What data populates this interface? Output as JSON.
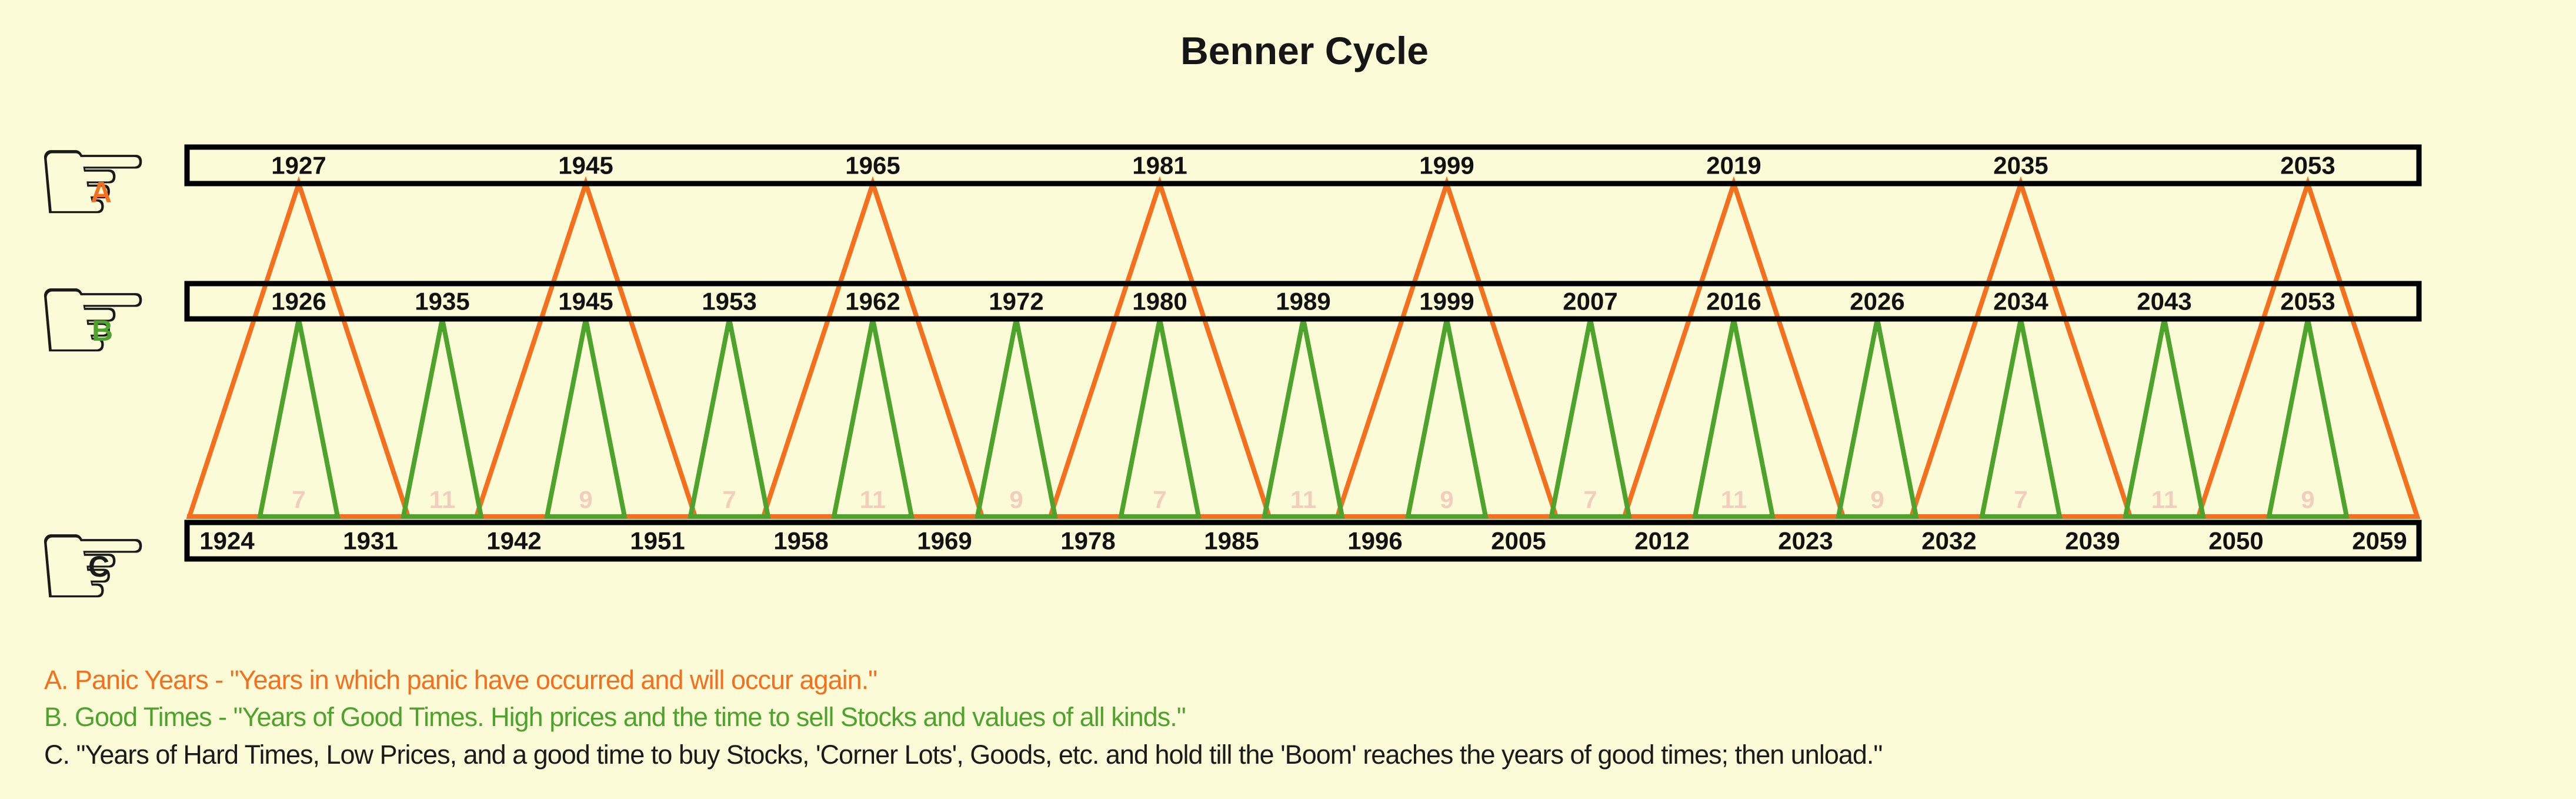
{
  "title": "Benner Cycle",
  "icons": {
    "pointing_hand": "☞"
  },
  "colors": {
    "background": "#FBFBD8",
    "panic_orange": "#F4701E",
    "good_green": "#4DA32B",
    "hard_black": "#1A1A1A",
    "interval_pale": "#F1CFBC",
    "box_border": "#000000"
  },
  "rows": [
    {
      "id": "A",
      "label": "A",
      "label_color": "#F4701E",
      "name": "Panic Years"
    },
    {
      "id": "B",
      "label": "B",
      "label_color": "#4DA32B",
      "name": "Good Times"
    },
    {
      "id": "C",
      "label": "C",
      "label_color": "#1A1A1A",
      "name": "Hard Times"
    }
  ],
  "legend": [
    {
      "text": "A. Panic Years - \"Years in which panic have occurred and will occur again.\"",
      "color": "#F4701E"
    },
    {
      "text": "B. Good Times - \"Years of Good Times. High prices and the time to sell Stocks and values of all kinds.\"",
      "color": "#4DA32B"
    },
    {
      "text": "C. \"Years of Hard Times, Low Prices, and a good time to buy Stocks, 'Corner Lots', Goods, etc. and hold till the 'Boom' reaches the years of good times; then unload.\"",
      "color": "#1A1A1A"
    }
  ],
  "chart_data": {
    "type": "line",
    "title": "Benner Cycle",
    "x_range": [
      1924,
      2059
    ],
    "grid": false,
    "legend_position": "bottom-left",
    "series": [
      {
        "name": "A. Panic Years",
        "role": "upper-peaks",
        "color": "#F4701E",
        "years": [
          1927,
          1945,
          1965,
          1981,
          1999,
          2019,
          2035,
          2053
        ]
      },
      {
        "name": "B. Good Times",
        "role": "middle-peaks",
        "color": "#4DA32B",
        "years": [
          1926,
          1935,
          1945,
          1953,
          1962,
          1972,
          1980,
          1989,
          1999,
          2007,
          2016,
          2026,
          2034,
          2043,
          2053
        ]
      },
      {
        "name": "C. Hard Times",
        "role": "baseline-valleys",
        "color": "#1A1A1A",
        "years": [
          1924,
          1931,
          1942,
          1951,
          1958,
          1969,
          1978,
          1985,
          1996,
          2005,
          2012,
          2023,
          2032,
          2039,
          2050,
          2059
        ]
      }
    ],
    "interval_labels": [
      7,
      11,
      9,
      7,
      11,
      9,
      7,
      11,
      9,
      7,
      11,
      9,
      7,
      11,
      9
    ]
  }
}
